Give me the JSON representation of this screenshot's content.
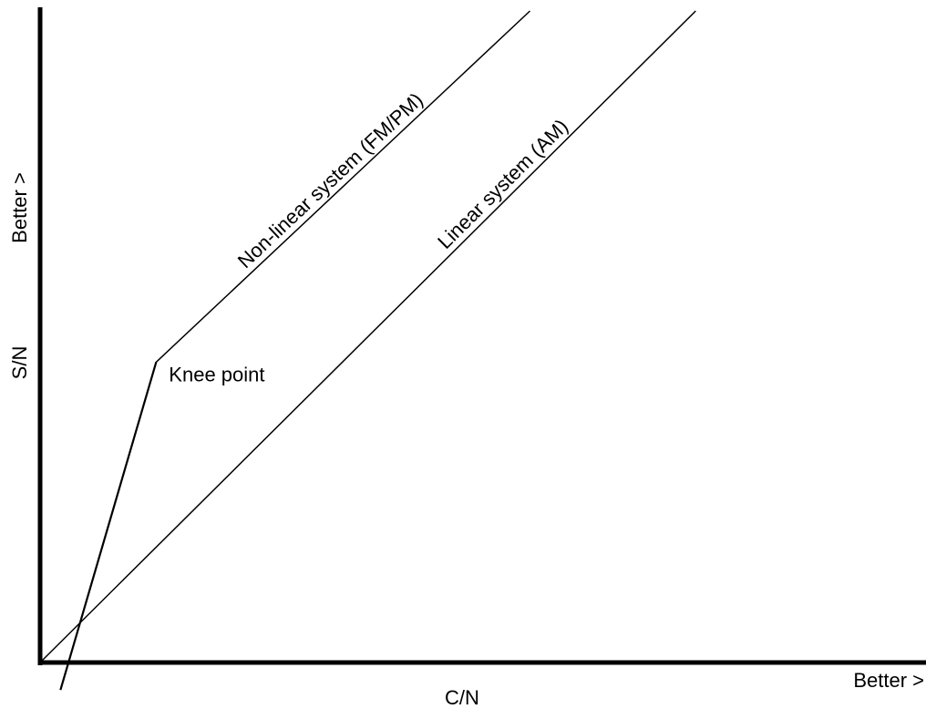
{
  "colors": {
    "background": "#ffffff",
    "ink": "#000000"
  },
  "chart_data": {
    "type": "line",
    "title": "",
    "xlabel": "C/N",
    "ylabel": "S/N",
    "x_direction_label": "Better >",
    "y_direction_label": "Better >",
    "xlim": [
      0,
      100
    ],
    "ylim": [
      0,
      100
    ],
    "grid": false,
    "legend": "none",
    "series": [
      {
        "name": "Linear system (AM)",
        "points": [
          [
            0,
            0
          ],
          [
            74,
            100
          ]
        ]
      },
      {
        "name": "Non-linear system (FM/PM)",
        "points": [
          [
            2.3,
            -4.2
          ],
          [
            13.1,
            46.1
          ],
          [
            55.3,
            100
          ]
        ]
      }
    ],
    "annotations": [
      {
        "text": "Knee point",
        "x": 13.1,
        "y": 46.1
      }
    ]
  }
}
